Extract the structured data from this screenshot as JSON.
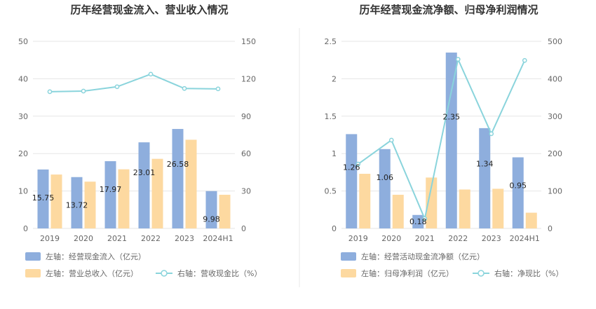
{
  "colors": {
    "bar1": "#8eaedd",
    "bar2": "#fdd9a0",
    "line": "#8ad4dc",
    "grid": "#e6e6e6",
    "divider": "#e8e8e8"
  },
  "chart_data": [
    {
      "type": "bar",
      "title": "历年经营现金流入、营业收入情况",
      "categories": [
        "2019",
        "2020",
        "2021",
        "2022",
        "2023",
        "2024H1"
      ],
      "left_axis": {
        "ylim": [
          0,
          50
        ],
        "ticks": [
          "0",
          "10",
          "20",
          "30",
          "40",
          "50"
        ]
      },
      "right_axis": {
        "ylim": [
          0,
          150
        ],
        "ticks": [
          "0",
          "30",
          "60",
          "90",
          "120",
          "150"
        ]
      },
      "series": [
        {
          "name": "左轴：经营现金流入（亿元）",
          "type": "bar",
          "axis": "left",
          "color": "#8eaedd",
          "values": [
            15.75,
            13.72,
            17.97,
            23.01,
            26.58,
            9.98
          ],
          "labels": [
            "15.75",
            "13.72",
            "17.97",
            "23.01",
            "26.58",
            "9.98"
          ]
        },
        {
          "name": "左轴：营业总收入（亿元）",
          "type": "bar",
          "axis": "left",
          "color": "#fdd9a0",
          "values": [
            14.4,
            12.5,
            15.8,
            18.6,
            23.7,
            9.0
          ]
        },
        {
          "name": "右轴：营收现金比（%）",
          "type": "line",
          "axis": "right",
          "color": "#8ad4dc",
          "values": [
            109.6,
            110.1,
            113.6,
            123.7,
            112.2,
            111.9
          ]
        }
      ],
      "legend": "bottom"
    },
    {
      "type": "bar",
      "title": "历年经营现金流净额、归母净利润情况",
      "categories": [
        "2019",
        "2020",
        "2021",
        "2022",
        "2023",
        "2024H1"
      ],
      "left_axis": {
        "ylim": [
          0,
          2.5
        ],
        "ticks": [
          "0",
          "0.5",
          "1",
          "1.5",
          "2",
          "2.5"
        ]
      },
      "right_axis": {
        "ylim": [
          0,
          500
        ],
        "ticks": [
          "0",
          "100",
          "200",
          "300",
          "400",
          "500"
        ]
      },
      "series": [
        {
          "name": "左轴：经营活动现金流净额（亿元）",
          "type": "bar",
          "axis": "left",
          "color": "#8eaedd",
          "values": [
            1.26,
            1.06,
            0.18,
            2.35,
            1.34,
            0.95
          ],
          "labels": [
            "1.26",
            "1.06",
            "0.18",
            "2.35",
            "1.34",
            "0.95"
          ]
        },
        {
          "name": "左轴：归母净利润（亿元）",
          "type": "bar",
          "axis": "left",
          "color": "#fdd9a0",
          "values": [
            0.73,
            0.45,
            0.68,
            0.52,
            0.53,
            0.21
          ]
        },
        {
          "name": "右轴：净现比（%）",
          "type": "line",
          "axis": "right",
          "color": "#8ad4dc",
          "values": [
            172,
            236,
            26,
            452,
            253,
            449
          ]
        }
      ],
      "legend": "bottom"
    }
  ]
}
